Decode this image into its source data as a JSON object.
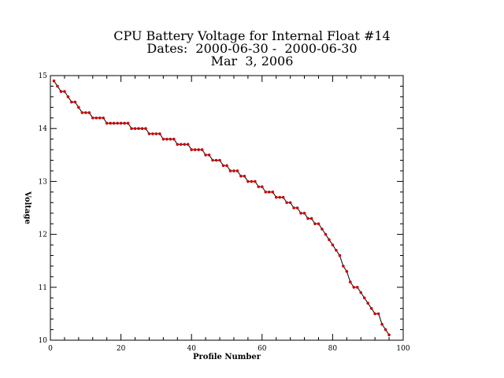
{
  "chart_data": {
    "type": "line",
    "title": "CPU Battery Voltage for Internal Float #14",
    "subtitle": "Dates:  2000-06-30 -  2000-06-30",
    "date_line": "Mar  3, 2006",
    "xlabel": "Profile Number",
    "ylabel": "Voltage",
    "xlim": [
      0,
      100
    ],
    "ylim": [
      10,
      15
    ],
    "x_ticks": [
      0,
      20,
      40,
      60,
      80,
      100
    ],
    "x_tick_labels": [
      "0",
      "20",
      "40",
      "60",
      "80",
      "100"
    ],
    "y_ticks": [
      10,
      11,
      12,
      13,
      14,
      15
    ],
    "y_tick_labels": [
      "10",
      "11",
      "12",
      "13",
      "14",
      "15"
    ],
    "grid": false,
    "line_color": "#000000",
    "marker_color": "#cc0000",
    "series": [
      {
        "x": [
          1,
          2,
          3,
          4,
          5,
          6,
          7,
          8,
          9,
          10,
          11,
          12,
          13,
          14,
          15,
          16,
          17,
          18,
          19,
          20,
          21,
          22,
          23,
          24,
          25,
          26,
          27,
          28,
          29,
          30,
          31,
          32,
          33,
          34,
          35,
          36,
          37,
          38,
          39,
          40,
          41,
          42,
          43,
          44,
          45,
          46,
          47,
          48,
          49,
          50,
          51,
          52,
          53,
          54,
          55,
          56,
          57,
          58,
          59,
          60,
          61,
          62,
          63,
          64,
          65,
          66,
          67,
          68,
          69,
          70,
          71,
          72,
          73,
          74,
          75,
          76,
          77,
          78,
          79,
          80,
          81,
          82,
          83,
          84,
          85,
          86,
          87,
          88,
          89,
          90,
          91,
          92,
          93,
          94,
          95,
          96
        ],
        "y": [
          14.9,
          14.8,
          14.7,
          14.7,
          14.6,
          14.5,
          14.5,
          14.4,
          14.3,
          14.3,
          14.3,
          14.2,
          14.2,
          14.2,
          14.2,
          14.1,
          14.1,
          14.1,
          14.1,
          14.1,
          14.1,
          14.1,
          14.0,
          14.0,
          14.0,
          14.0,
          14.0,
          13.9,
          13.9,
          13.9,
          13.9,
          13.8,
          13.8,
          13.8,
          13.8,
          13.7,
          13.7,
          13.7,
          13.7,
          13.6,
          13.6,
          13.6,
          13.6,
          13.5,
          13.5,
          13.4,
          13.4,
          13.4,
          13.3,
          13.3,
          13.2,
          13.2,
          13.2,
          13.1,
          13.1,
          13.0,
          13.0,
          13.0,
          12.9,
          12.9,
          12.8,
          12.8,
          12.8,
          12.7,
          12.7,
          12.7,
          12.6,
          12.6,
          12.5,
          12.5,
          12.4,
          12.4,
          12.3,
          12.3,
          12.2,
          12.2,
          12.1,
          12.0,
          11.9,
          11.8,
          11.7,
          11.6,
          11.4,
          11.3,
          11.1,
          11.0,
          11.0,
          10.9,
          10.8,
          10.7,
          10.6,
          10.5,
          10.5,
          10.3,
          10.2,
          10.1
        ]
      }
    ]
  }
}
